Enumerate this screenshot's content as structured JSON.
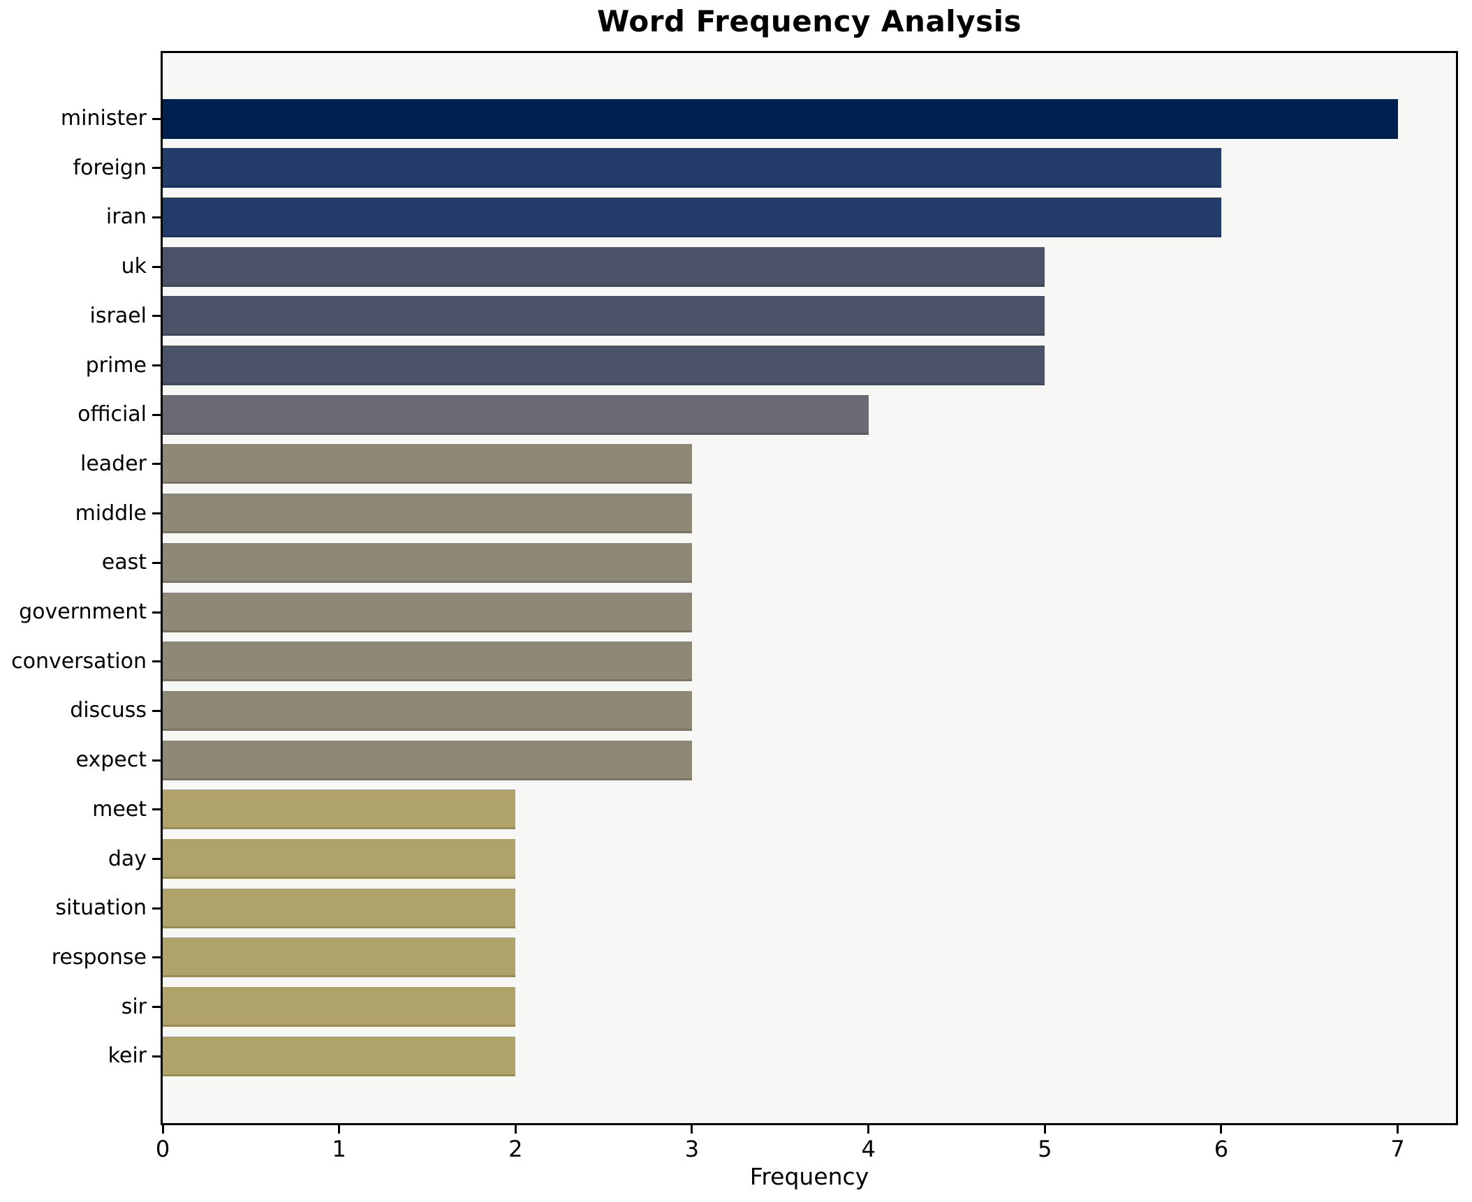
{
  "chart_data": {
    "type": "bar",
    "orientation": "horizontal",
    "title": "Word Frequency Analysis",
    "xlabel": "Frequency",
    "ylabel": "",
    "categories": [
      "minister",
      "foreign",
      "iran",
      "uk",
      "israel",
      "prime",
      "official",
      "leader",
      "middle",
      "east",
      "government",
      "conversation",
      "discuss",
      "expect",
      "meet",
      "day",
      "situation",
      "response",
      "sir",
      "keir"
    ],
    "values": [
      7,
      6,
      6,
      5,
      5,
      5,
      4,
      3,
      3,
      3,
      3,
      3,
      3,
      3,
      2,
      2,
      2,
      2,
      2,
      2
    ],
    "bar_colors": [
      "#00214f",
      "#233c6a",
      "#233c6a",
      "#4b5368",
      "#4b5368",
      "#4b5368",
      "#6a6a72",
      "#8e8877",
      "#8e8877",
      "#8e8877",
      "#8e8877",
      "#8e8877",
      "#8e8877",
      "#8e8877",
      "#afa369",
      "#afa369",
      "#afa369",
      "#afa369",
      "#afa369",
      "#afa369"
    ],
    "xticks": [
      "0",
      "1",
      "2",
      "3",
      "4",
      "5",
      "6",
      "7"
    ],
    "xlim": [
      0,
      7.33
    ],
    "grid": false,
    "legend": null,
    "plot_background": "#f7f7f5",
    "figure_background": "#ffffff",
    "spine_color": "#000000"
  }
}
